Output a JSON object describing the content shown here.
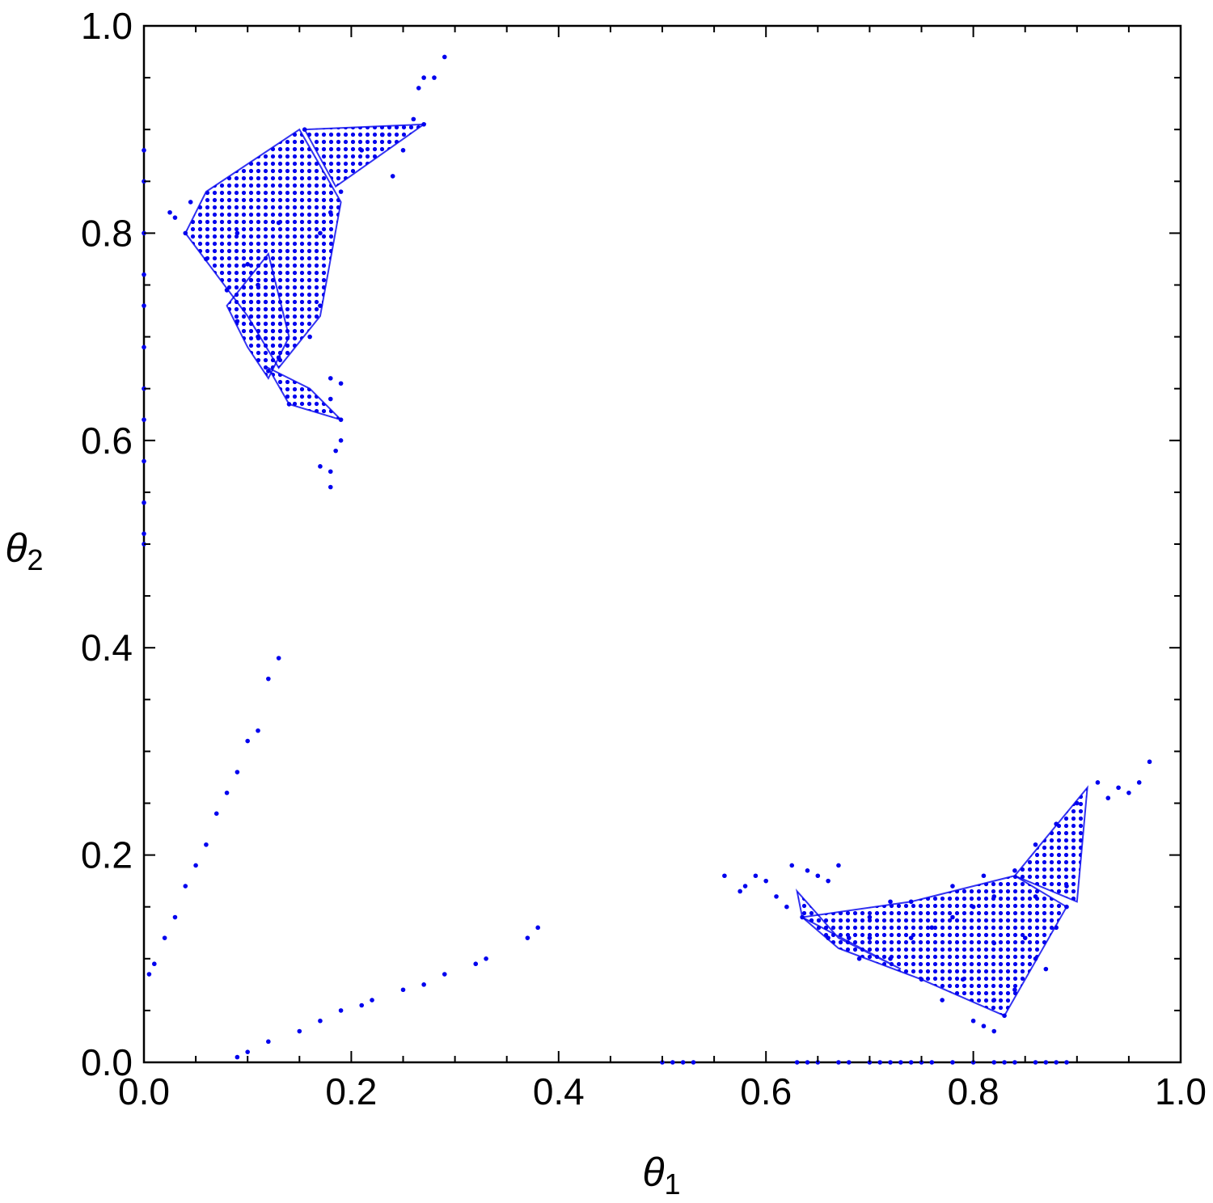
{
  "chart_data": {
    "type": "scatter",
    "title": "",
    "xlabel": "θ",
    "xlabel_subscript": "1",
    "ylabel": "θ",
    "ylabel_subscript": "2",
    "xlim": [
      0,
      1
    ],
    "ylim": [
      0,
      1
    ],
    "grid": false,
    "legend": "none",
    "xticks": [
      {
        "value": 0.0,
        "label": "0.0"
      },
      {
        "value": 0.2,
        "label": "0.2"
      },
      {
        "value": 0.4,
        "label": "0.4"
      },
      {
        "value": 0.6,
        "label": "0.6"
      },
      {
        "value": 0.8,
        "label": "0.8"
      },
      {
        "value": 1.0,
        "label": "1.0"
      }
    ],
    "yticks": [
      {
        "value": 0.0,
        "label": "0.0"
      },
      {
        "value": 0.2,
        "label": "0.2"
      },
      {
        "value": 0.4,
        "label": "0.4"
      },
      {
        "value": 0.6,
        "label": "0.6"
      },
      {
        "value": 0.8,
        "label": "0.8"
      },
      {
        "value": 1.0,
        "label": "1.0"
      }
    ],
    "minor_tick_step": 0.05,
    "marker_color": "#0000ee",
    "regions": [
      {
        "polygon": [
          [
            0.04,
            0.8
          ],
          [
            0.06,
            0.84
          ],
          [
            0.15,
            0.9
          ],
          [
            0.19,
            0.83
          ],
          [
            0.17,
            0.72
          ],
          [
            0.13,
            0.67
          ],
          [
            0.1,
            0.72
          ]
        ]
      },
      {
        "polygon": [
          [
            0.155,
            0.9
          ],
          [
            0.27,
            0.905
          ],
          [
            0.185,
            0.845
          ]
        ]
      },
      {
        "polygon": [
          [
            0.08,
            0.73
          ],
          [
            0.12,
            0.78
          ],
          [
            0.14,
            0.7
          ],
          [
            0.12,
            0.66
          ],
          [
            0.1,
            0.69
          ]
        ]
      },
      {
        "polygon": [
          [
            0.12,
            0.67
          ],
          [
            0.14,
            0.635
          ],
          [
            0.19,
            0.62
          ],
          [
            0.16,
            0.65
          ]
        ]
      },
      {
        "polygon": [
          [
            0.635,
            0.14
          ],
          [
            0.74,
            0.155
          ],
          [
            0.84,
            0.18
          ],
          [
            0.89,
            0.15
          ],
          [
            0.83,
            0.045
          ],
          [
            0.75,
            0.08
          ],
          [
            0.67,
            0.11
          ]
        ]
      },
      {
        "polygon": [
          [
            0.84,
            0.18
          ],
          [
            0.91,
            0.265
          ],
          [
            0.9,
            0.155
          ]
        ]
      },
      {
        "polygon": [
          [
            0.635,
            0.14
          ],
          [
            0.63,
            0.165
          ],
          [
            0.67,
            0.12
          ],
          [
            0.73,
            0.09
          ]
        ]
      }
    ],
    "series": [
      {
        "values": [
          [
            0.04,
            0.8
          ],
          [
            0.09,
            0.715
          ],
          [
            0.12,
            0.667
          ],
          [
            0.14,
            0.635
          ],
          [
            0.19,
            0.62
          ],
          [
            0.155,
            0.9
          ],
          [
            0.27,
            0.905
          ],
          [
            0.19,
            0.84
          ],
          [
            0.24,
            0.855
          ],
          [
            0.25,
            0.88
          ],
          [
            0.26,
            0.91
          ],
          [
            0.265,
            0.94
          ],
          [
            0.27,
            0.95
          ],
          [
            0.29,
            0.97
          ],
          [
            0.28,
            0.95
          ],
          [
            0.21,
            0.88
          ],
          [
            0.23,
            0.895
          ],
          [
            0.045,
            0.83
          ],
          [
            0.025,
            0.82
          ],
          [
            0.03,
            0.815
          ],
          [
            0.1,
            0.77
          ],
          [
            0.11,
            0.75
          ],
          [
            0.18,
            0.66
          ],
          [
            0.19,
            0.655
          ],
          [
            0.18,
            0.64
          ],
          [
            0.17,
            0.575
          ],
          [
            0.18,
            0.57
          ],
          [
            0.185,
            0.59
          ],
          [
            0.19,
            0.6
          ],
          [
            0.18,
            0.555
          ],
          [
            0.0,
            0.88
          ],
          [
            0.0,
            0.85
          ],
          [
            0.0,
            0.8
          ],
          [
            0.0,
            0.76
          ],
          [
            0.0,
            0.73
          ],
          [
            0.0,
            0.69
          ],
          [
            0.0,
            0.65
          ],
          [
            0.0,
            0.62
          ],
          [
            0.0,
            0.58
          ],
          [
            0.0,
            0.54
          ],
          [
            0.0,
            0.51
          ],
          [
            0.0,
            0.5
          ],
          [
            0.06,
            0.775
          ],
          [
            0.08,
            0.745
          ],
          [
            0.11,
            0.7
          ],
          [
            0.13,
            0.68
          ],
          [
            0.16,
            0.7
          ],
          [
            0.17,
            0.73
          ],
          [
            0.17,
            0.8
          ],
          [
            0.18,
            0.82
          ],
          [
            0.13,
            0.81
          ],
          [
            0.09,
            0.8
          ],
          [
            0.635,
            0.14
          ],
          [
            0.625,
            0.19
          ],
          [
            0.66,
            0.12
          ],
          [
            0.75,
            0.08
          ],
          [
            0.8,
            0.04
          ],
          [
            0.83,
            0.045
          ],
          [
            0.82,
            0.03
          ],
          [
            0.81,
            0.035
          ],
          [
            0.89,
            0.15
          ],
          [
            0.92,
            0.27
          ],
          [
            0.96,
            0.27
          ],
          [
            0.97,
            0.29
          ],
          [
            0.95,
            0.26
          ],
          [
            0.93,
            0.255
          ],
          [
            0.94,
            0.265
          ],
          [
            0.84,
            0.185
          ],
          [
            0.86,
            0.21
          ],
          [
            0.88,
            0.23
          ],
          [
            0.9,
            0.25
          ],
          [
            0.89,
            0.17
          ],
          [
            0.86,
            0.16
          ],
          [
            0.82,
            0.115
          ],
          [
            0.79,
            0.08
          ],
          [
            0.77,
            0.06
          ],
          [
            0.72,
            0.155
          ],
          [
            0.7,
            0.14
          ],
          [
            0.68,
            0.12
          ],
          [
            0.575,
            0.165
          ],
          [
            0.58,
            0.17
          ],
          [
            0.59,
            0.18
          ],
          [
            0.56,
            0.18
          ],
          [
            0.6,
            0.175
          ],
          [
            0.61,
            0.16
          ],
          [
            0.62,
            0.15
          ],
          [
            0.64,
            0.185
          ],
          [
            0.65,
            0.18
          ],
          [
            0.66,
            0.175
          ],
          [
            0.67,
            0.19
          ],
          [
            0.7,
            0.12
          ],
          [
            0.72,
            0.1
          ],
          [
            0.74,
            0.12
          ],
          [
            0.76,
            0.13
          ],
          [
            0.78,
            0.14
          ],
          [
            0.8,
            0.15
          ],
          [
            0.82,
            0.16
          ],
          [
            0.74,
            0.155
          ],
          [
            0.78,
            0.17
          ],
          [
            0.81,
            0.18
          ],
          [
            0.85,
            0.12
          ],
          [
            0.86,
            0.1
          ],
          [
            0.87,
            0.09
          ],
          [
            0.88,
            0.13
          ],
          [
            0.84,
            0.07
          ],
          [
            0.82,
            0.06
          ],
          [
            0.69,
            0.1
          ],
          [
            0.005,
            0.085
          ],
          [
            0.01,
            0.095
          ],
          [
            0.02,
            0.12
          ],
          [
            0.03,
            0.14
          ],
          [
            0.04,
            0.17
          ],
          [
            0.05,
            0.19
          ],
          [
            0.06,
            0.21
          ],
          [
            0.07,
            0.24
          ],
          [
            0.08,
            0.26
          ],
          [
            0.09,
            0.28
          ],
          [
            0.1,
            0.31
          ],
          [
            0.11,
            0.32
          ],
          [
            0.12,
            0.37
          ],
          [
            0.13,
            0.39
          ],
          [
            0.09,
            0.005
          ],
          [
            0.1,
            0.01
          ],
          [
            0.12,
            0.02
          ],
          [
            0.15,
            0.03
          ],
          [
            0.17,
            0.04
          ],
          [
            0.19,
            0.05
          ],
          [
            0.21,
            0.055
          ],
          [
            0.22,
            0.06
          ],
          [
            0.25,
            0.07
          ],
          [
            0.27,
            0.075
          ],
          [
            0.29,
            0.085
          ],
          [
            0.32,
            0.095
          ],
          [
            0.33,
            0.1
          ],
          [
            0.37,
            0.12
          ],
          [
            0.38,
            0.13
          ],
          [
            0.5,
            0.0
          ],
          [
            0.51,
            0.0
          ],
          [
            0.52,
            0.0
          ],
          [
            0.53,
            0.0
          ],
          [
            0.63,
            0.0
          ],
          [
            0.64,
            0.0
          ],
          [
            0.65,
            0.0
          ],
          [
            0.67,
            0.0
          ],
          [
            0.68,
            0.0
          ],
          [
            0.7,
            0.0
          ],
          [
            0.71,
            0.0
          ],
          [
            0.72,
            0.0
          ],
          [
            0.73,
            0.0
          ],
          [
            0.74,
            0.0
          ],
          [
            0.75,
            0.0
          ],
          [
            0.76,
            0.0
          ],
          [
            0.78,
            0.0
          ],
          [
            0.8,
            0.0
          ],
          [
            0.82,
            0.0
          ],
          [
            0.83,
            0.0
          ],
          [
            0.84,
            0.0
          ],
          [
            0.86,
            0.0
          ],
          [
            0.87,
            0.0
          ],
          [
            0.88,
            0.0
          ],
          [
            0.89,
            0.0
          ]
        ]
      }
    ]
  }
}
